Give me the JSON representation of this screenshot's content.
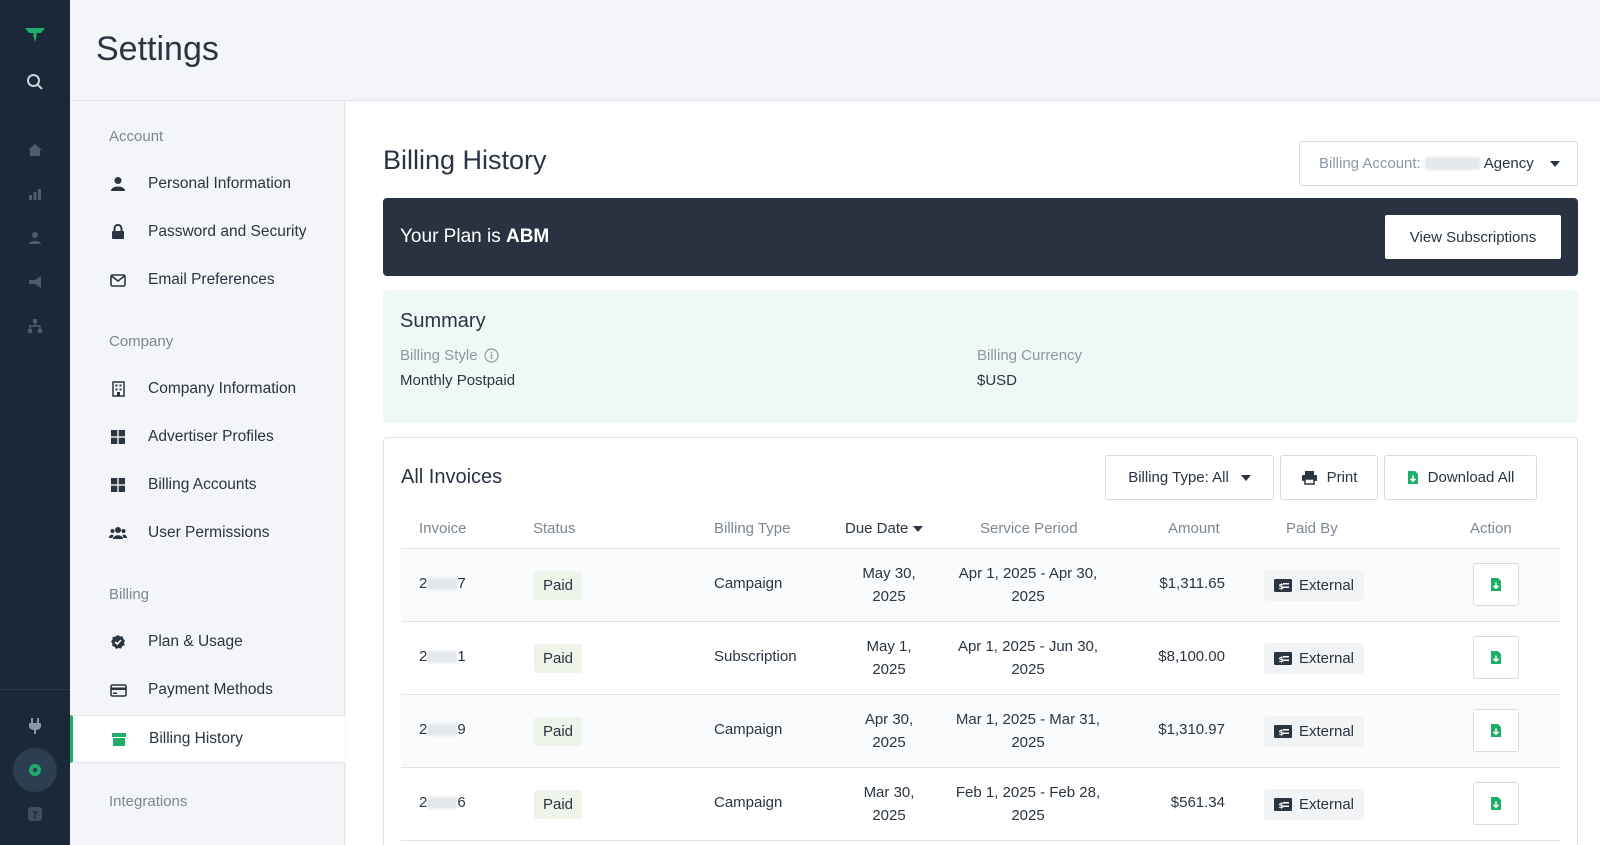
{
  "header": {
    "title": "Settings"
  },
  "nav": {
    "sections": [
      {
        "label": "Account"
      },
      {
        "label": "Company"
      },
      {
        "label": "Billing"
      },
      {
        "label": "Integrations"
      }
    ],
    "items": [
      {
        "label": "Personal Information",
        "icon": "user-icon"
      },
      {
        "label": "Password and Security",
        "icon": "lock-icon"
      },
      {
        "label": "Email Preferences",
        "icon": "envelope-icon"
      },
      {
        "label": "Company Information",
        "icon": "building-icon"
      },
      {
        "label": "Advertiser Profiles",
        "icon": "grid-icon"
      },
      {
        "label": "Billing Accounts",
        "icon": "grid-icon"
      },
      {
        "label": "User Permissions",
        "icon": "users-icon"
      },
      {
        "label": "Plan & Usage",
        "icon": "badge-check-icon"
      },
      {
        "label": "Payment Methods",
        "icon": "credit-card-icon"
      },
      {
        "label": "Billing History",
        "icon": "archive-icon",
        "active": true
      }
    ]
  },
  "main": {
    "title": "Billing History",
    "billing_account": {
      "label": "Billing Account:",
      "value": "Agency"
    },
    "plan": {
      "prefix": "Your Plan is",
      "name": "ABM",
      "button": "View Subscriptions"
    },
    "summary": {
      "title": "Summary",
      "billing_style_label": "Billing Style",
      "billing_style_value": "Monthly Postpaid",
      "billing_currency_label": "Billing Currency",
      "billing_currency_value": "$USD"
    },
    "invoices": {
      "title": "All Invoices",
      "billing_type_filter": "Billing Type: All",
      "print_label": "Print",
      "download_all_label": "Download All",
      "columns": [
        "Invoice",
        "Status",
        "Billing Type",
        "Due Date",
        "Service Period",
        "Amount",
        "Paid By",
        "Action"
      ],
      "rows": [
        {
          "inv_start": "2",
          "inv_end": "7",
          "status": "Paid",
          "billing_type": "Campaign",
          "due_1": "May 30,",
          "due_2": "2025",
          "period_1": "Apr 1, 2025 - Apr 30,",
          "period_2": "2025",
          "amount": "$1,311.65",
          "paid_by": "External"
        },
        {
          "inv_start": "2",
          "inv_end": "1",
          "status": "Paid",
          "billing_type": "Subscription",
          "due_1": "May 1,",
          "due_2": "2025",
          "period_1": "Apr 1, 2025 - Jun 30,",
          "period_2": "2025",
          "amount": "$8,100.00",
          "paid_by": "External"
        },
        {
          "inv_start": "2",
          "inv_end": "9",
          "status": "Paid",
          "billing_type": "Campaign",
          "due_1": "Apr 30,",
          "due_2": "2025",
          "period_1": "Mar 1, 2025 - Mar 31,",
          "period_2": "2025",
          "amount": "$1,310.97",
          "paid_by": "External"
        },
        {
          "inv_start": "2",
          "inv_end": "6",
          "status": "Paid",
          "billing_type": "Campaign",
          "due_1": "Mar 30,",
          "due_2": "2025",
          "period_1": "Feb 1, 2025 - Feb 28,",
          "period_2": "2025",
          "amount": "$561.34",
          "paid_by": "External"
        }
      ]
    }
  },
  "colors": {
    "accent": "#1fae6a",
    "rail": "#1b2837",
    "plan_banner": "#283241",
    "summary_bg": "#eef9f5"
  }
}
